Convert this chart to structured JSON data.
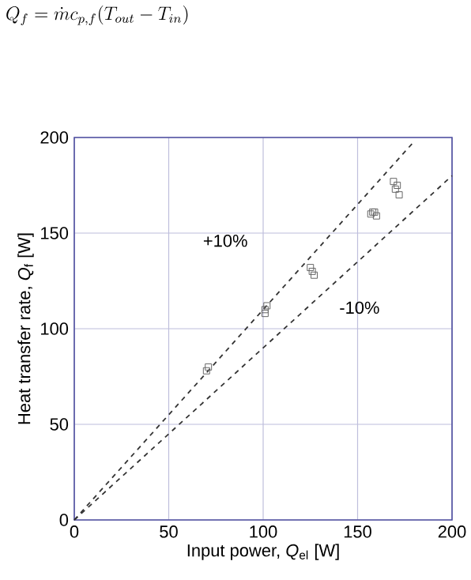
{
  "chart_data": {
    "type": "scatter",
    "xlabel": "Input power, *Q*$_{el}$ [W]",
    "ylabel": "Heat transfer rate, *Q*$_{f}$ [W]",
    "xlim": [
      0,
      200
    ],
    "ylim": [
      0,
      200
    ],
    "xticks": [
      0,
      50,
      100,
      150,
      200
    ],
    "yticks": [
      0,
      50,
      100,
      150,
      200
    ],
    "grid": true,
    "series": [
      {
        "marker": "square",
        "color": "#666666",
        "x": [
          70,
          71,
          101,
          101,
          102,
          125,
          126,
          127,
          157,
          158,
          159,
          160,
          169,
          170,
          171,
          172
        ],
        "values": [
          78,
          80,
          108,
          110,
          112,
          132,
          130,
          128,
          160,
          161,
          161,
          159,
          177,
          173,
          175,
          170
        ]
      },
      {
        "type": "line",
        "marker": "none",
        "line_style": "dashed",
        "color": "#333333",
        "x": [
          0,
          180
        ],
        "values": [
          0,
          198
        ]
      },
      {
        "type": "line",
        "marker": "none",
        "line_style": "dashed",
        "color": "#333333",
        "x": [
          0,
          200
        ],
        "values": [
          0,
          180
        ]
      }
    ],
    "annotations": [
      "Q_f = \\dot{m} c_{p,f}(T_{out} - T_{in})",
      "+10%",
      "-10%"
    ]
  }
}
